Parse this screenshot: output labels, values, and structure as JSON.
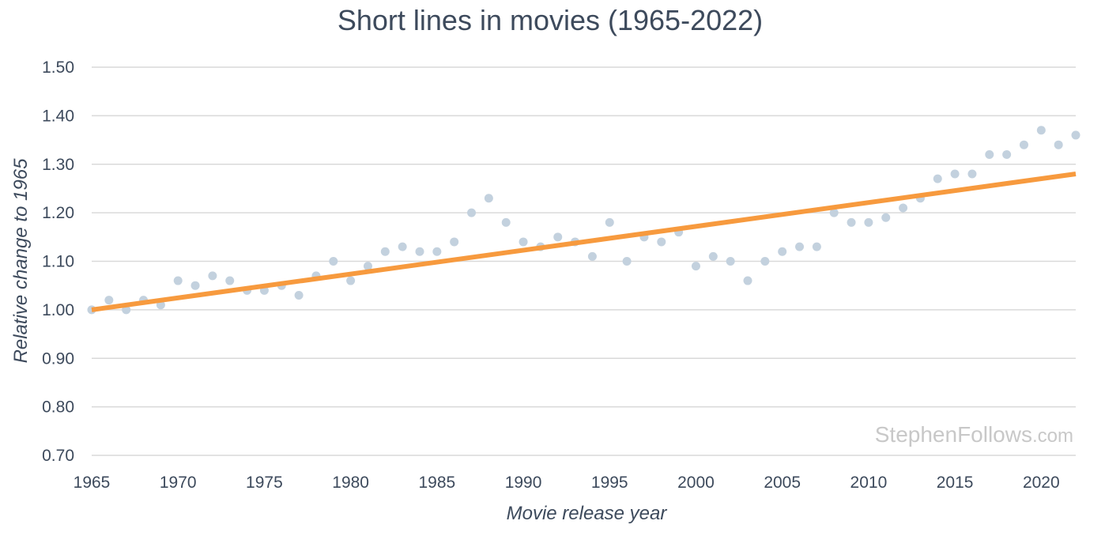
{
  "chart_data": {
    "type": "scatter",
    "title": "Short lines in movies (1965-2022)",
    "xlabel": "Movie release year",
    "ylabel": "Relative change to 1965",
    "xlim": [
      1965,
      2022
    ],
    "ylim": [
      0.7,
      1.5
    ],
    "x_ticks": [
      "1965",
      "1970",
      "1975",
      "1980",
      "1985",
      "1990",
      "1995",
      "2000",
      "2005",
      "2010",
      "2015",
      "2020"
    ],
    "y_ticks": [
      "0.70",
      "0.80",
      "0.90",
      "1.00",
      "1.10",
      "1.20",
      "1.30",
      "1.40",
      "1.50"
    ],
    "grid": true,
    "series": [
      {
        "color": "#c3d1de",
        "points": [
          {
            "x": 1965,
            "y": 1.0
          },
          {
            "x": 1966,
            "y": 1.02
          },
          {
            "x": 1967,
            "y": 1.0
          },
          {
            "x": 1968,
            "y": 1.02
          },
          {
            "x": 1969,
            "y": 1.01
          },
          {
            "x": 1970,
            "y": 1.06
          },
          {
            "x": 1971,
            "y": 1.05
          },
          {
            "x": 1972,
            "y": 1.07
          },
          {
            "x": 1973,
            "y": 1.06
          },
          {
            "x": 1974,
            "y": 1.04
          },
          {
            "x": 1975,
            "y": 1.04
          },
          {
            "x": 1976,
            "y": 1.05
          },
          {
            "x": 1977,
            "y": 1.03
          },
          {
            "x": 1978,
            "y": 1.07
          },
          {
            "x": 1979,
            "y": 1.1
          },
          {
            "x": 1980,
            "y": 1.06
          },
          {
            "x": 1981,
            "y": 1.09
          },
          {
            "x": 1982,
            "y": 1.12
          },
          {
            "x": 1983,
            "y": 1.13
          },
          {
            "x": 1984,
            "y": 1.12
          },
          {
            "x": 1985,
            "y": 1.12
          },
          {
            "x": 1986,
            "y": 1.14
          },
          {
            "x": 1987,
            "y": 1.2
          },
          {
            "x": 1988,
            "y": 1.23
          },
          {
            "x": 1989,
            "y": 1.18
          },
          {
            "x": 1990,
            "y": 1.14
          },
          {
            "x": 1991,
            "y": 1.13
          },
          {
            "x": 1992,
            "y": 1.15
          },
          {
            "x": 1993,
            "y": 1.14
          },
          {
            "x": 1994,
            "y": 1.11
          },
          {
            "x": 1995,
            "y": 1.18
          },
          {
            "x": 1996,
            "y": 1.1
          },
          {
            "x": 1997,
            "y": 1.15
          },
          {
            "x": 1998,
            "y": 1.14
          },
          {
            "x": 1999,
            "y": 1.16
          },
          {
            "x": 2000,
            "y": 1.09
          },
          {
            "x": 2001,
            "y": 1.11
          },
          {
            "x": 2002,
            "y": 1.1
          },
          {
            "x": 2003,
            "y": 1.06
          },
          {
            "x": 2004,
            "y": 1.1
          },
          {
            "x": 2005,
            "y": 1.12
          },
          {
            "x": 2006,
            "y": 1.13
          },
          {
            "x": 2007,
            "y": 1.13
          },
          {
            "x": 2008,
            "y": 1.2
          },
          {
            "x": 2009,
            "y": 1.18
          },
          {
            "x": 2010,
            "y": 1.18
          },
          {
            "x": 2011,
            "y": 1.19
          },
          {
            "x": 2012,
            "y": 1.21
          },
          {
            "x": 2013,
            "y": 1.23
          },
          {
            "x": 2014,
            "y": 1.27
          },
          {
            "x": 2015,
            "y": 1.28
          },
          {
            "x": 2016,
            "y": 1.28
          },
          {
            "x": 2017,
            "y": 1.32
          },
          {
            "x": 2018,
            "y": 1.32
          },
          {
            "x": 2019,
            "y": 1.34
          },
          {
            "x": 2020,
            "y": 1.37
          },
          {
            "x": 2021,
            "y": 1.34
          },
          {
            "x": 2022,
            "y": 1.36
          }
        ]
      }
    ],
    "trendline": {
      "color": "#f79a3e",
      "start": {
        "x": 1965,
        "y": 1.0
      },
      "end": {
        "x": 2022,
        "y": 1.28
      }
    }
  },
  "watermark": {
    "main": "StephenFollows",
    "suffix": ".com"
  }
}
